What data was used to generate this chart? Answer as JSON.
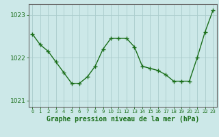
{
  "x": [
    0,
    1,
    2,
    3,
    4,
    5,
    6,
    7,
    8,
    9,
    10,
    11,
    12,
    13,
    14,
    15,
    16,
    17,
    18,
    19,
    20,
    21,
    22,
    23
  ],
  "y": [
    1022.55,
    1022.3,
    1022.15,
    1021.9,
    1021.65,
    1021.4,
    1021.4,
    1021.55,
    1021.8,
    1022.2,
    1022.45,
    1022.45,
    1022.45,
    1022.25,
    1021.8,
    1021.75,
    1021.7,
    1021.6,
    1021.45,
    1021.45,
    1021.45,
    1022.0,
    1022.6,
    1023.1
  ],
  "line_color": "#1a6e1a",
  "marker": "+",
  "marker_size": 4,
  "marker_color": "#1a6e1a",
  "bg_color": "#cce8e8",
  "grid_color": "#aacccc",
  "axis_color": "#1a6e1a",
  "tick_color": "#1a6e1a",
  "ylim": [
    1020.85,
    1023.25
  ],
  "yticks": [
    1021,
    1022,
    1023
  ],
  "xlim": [
    -0.5,
    23.5
  ],
  "xlabel": "Graphe pression niveau de la mer (hPa)",
  "xlabel_fontsize": 7,
  "linewidth": 1.0
}
